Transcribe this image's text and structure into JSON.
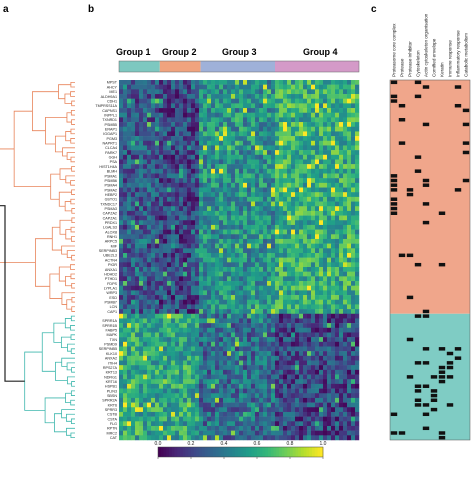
{
  "panels": [
    "a",
    "b",
    "c"
  ],
  "groups": [
    "Group 1",
    "Group 2",
    "Group 3",
    "Group 4"
  ],
  "colors": {
    "group_bar": [
      "#7dc8c0",
      "#f0a37e",
      "#9fb1d9",
      "#d49ac8"
    ],
    "cluster_upper": "#e8845a",
    "cluster_lower": "#3fb7ad",
    "root": "#222222",
    "annot_upper_bg": "#f0a68b",
    "annot_lower_bg": "#7fccc4",
    "annot_mark": "#111111"
  },
  "annotation_categories": [
    "Proteasome core complex",
    "Protease",
    "Protease inhibitor",
    "Cytoskeleton",
    "Actin cytoskeleton organisation",
    "Cornified envelope",
    "Keratin",
    "Immune response",
    "Inflammatory response",
    "Catabolic metabolism"
  ],
  "chart_data": {
    "type": "heatmap",
    "colormap": "viridis",
    "colorbar": {
      "min": 0.0,
      "max": 1.0,
      "ticks": [
        "0.0",
        "0.2",
        "0.4",
        "0.6",
        "0.8",
        "1.0"
      ]
    },
    "n_columns": 60,
    "upper_cluster_genes": [
      "MPST",
      "AHCY",
      "ME1",
      "ALDH9A1",
      "CDH1",
      "TMPRSS11A",
      "CAPNS1",
      "INPPL1",
      "TXNRD1",
      "PSMB5",
      "ERAP1",
      "IGGAP1",
      "PGM3",
      "NAPRT1",
      "CLCA4",
      "PARK7",
      "GGH",
      "PSA",
      "HIST1H4A",
      "BLMH",
      "PSMA1",
      "PSMB6",
      "PSMA4",
      "PSMA2",
      "HEBP2",
      "GSTO1",
      "TXNDC17",
      "PSMA3",
      "CAPZA2",
      "CAPZA1",
      "PRDX1",
      "LGALS3",
      "ALOX8",
      "RNH1",
      "ARPC5",
      "MIF",
      "SERPINB3",
      "UBE2L3",
      "ACTN4",
      "PIGR",
      "ANXA1",
      "HDHD2",
      "PTHD1",
      "FDPS",
      "LYPLA1",
      "WRP3",
      "ESD",
      "PSMB7",
      "LCN",
      "CAP1"
    ],
    "lower_cluster_genes": [
      "CAP2",
      "SPRR1A",
      "SPRR1B",
      "FABP5",
      "MAPK",
      "TXN",
      "PSMD9",
      "SERPINB5",
      "KLK10",
      "ANXA2",
      "ITIH4",
      "RPS27A",
      "KRT13",
      "NDRG1",
      "KRT16",
      "HSPB1",
      "PLIN3",
      "SBSN",
      "SPRR2A",
      "KRT6",
      "SPRR3",
      "CSTB",
      "CSTA",
      "FLG",
      "RPTN",
      "MRC2",
      "CAT"
    ],
    "upper_group_means": [
      0.28,
      0.22,
      0.5,
      0.62
    ],
    "lower_group_means": [
      0.6,
      0.58,
      0.35,
      0.22
    ]
  }
}
